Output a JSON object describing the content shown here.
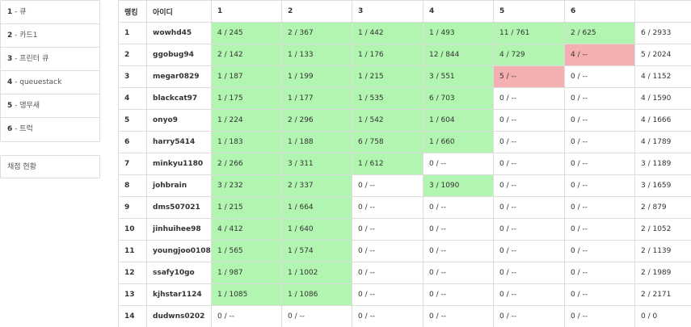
{
  "sidebar": {
    "problems": [
      {
        "num": "1",
        "title": "큐"
      },
      {
        "num": "2",
        "title": "카드1"
      },
      {
        "num": "3",
        "title": "프린터 큐"
      },
      {
        "num": "4",
        "title": "queuestack"
      },
      {
        "num": "5",
        "title": "앵무새"
      },
      {
        "num": "6",
        "title": "트럭"
      }
    ],
    "status_label": "채점 현황"
  },
  "board": {
    "headers": {
      "rank": "랭킹",
      "id": "아이디",
      "problems": [
        "1",
        "2",
        "3",
        "4",
        "5",
        "6"
      ],
      "total": ""
    },
    "colors": {
      "solved": "#b1f5b0",
      "wrong": "#f4b0b1"
    },
    "rows": [
      {
        "rank": "1",
        "id": "wowhd45",
        "cells": [
          {
            "text": "4 / 245",
            "status": "solved"
          },
          {
            "text": "2 / 367",
            "status": "solved"
          },
          {
            "text": "1 / 442",
            "status": "solved"
          },
          {
            "text": "1 / 493",
            "status": "solved"
          },
          {
            "text": "11 / 761",
            "status": "solved"
          },
          {
            "text": "2 / 625",
            "status": "solved"
          }
        ],
        "total": "6 / 2933"
      },
      {
        "rank": "2",
        "id": "ggobug94",
        "cells": [
          {
            "text": "2 / 142",
            "status": "solved"
          },
          {
            "text": "1 / 133",
            "status": "solved"
          },
          {
            "text": "1 / 176",
            "status": "solved"
          },
          {
            "text": "12 / 844",
            "status": "solved"
          },
          {
            "text": "4 / 729",
            "status": "solved"
          },
          {
            "text": "4 / --",
            "status": "wrong"
          }
        ],
        "total": "5 / 2024"
      },
      {
        "rank": "3",
        "id": "megar0829",
        "cells": [
          {
            "text": "1 / 187",
            "status": "solved"
          },
          {
            "text": "1 / 199",
            "status": "solved"
          },
          {
            "text": "1 / 215",
            "status": "solved"
          },
          {
            "text": "3 / 551",
            "status": "solved"
          },
          {
            "text": "5 / --",
            "status": "wrong"
          },
          {
            "text": "0 / --",
            "status": "none"
          }
        ],
        "total": "4 / 1152"
      },
      {
        "rank": "4",
        "id": "blackcat97",
        "cells": [
          {
            "text": "1 / 175",
            "status": "solved"
          },
          {
            "text": "1 / 177",
            "status": "solved"
          },
          {
            "text": "1 / 535",
            "status": "solved"
          },
          {
            "text": "6 / 703",
            "status": "solved"
          },
          {
            "text": "0 / --",
            "status": "none"
          },
          {
            "text": "0 / --",
            "status": "none"
          }
        ],
        "total": "4 / 1590"
      },
      {
        "rank": "5",
        "id": "onyo9",
        "cells": [
          {
            "text": "1 / 224",
            "status": "solved"
          },
          {
            "text": "2 / 296",
            "status": "solved"
          },
          {
            "text": "1 / 542",
            "status": "solved"
          },
          {
            "text": "1 / 604",
            "status": "solved"
          },
          {
            "text": "0 / --",
            "status": "none"
          },
          {
            "text": "0 / --",
            "status": "none"
          }
        ],
        "total": "4 / 1666"
      },
      {
        "rank": "6",
        "id": "harry5414",
        "cells": [
          {
            "text": "1 / 183",
            "status": "solved"
          },
          {
            "text": "1 / 188",
            "status": "solved"
          },
          {
            "text": "6 / 758",
            "status": "solved"
          },
          {
            "text": "1 / 660",
            "status": "solved"
          },
          {
            "text": "0 / --",
            "status": "none"
          },
          {
            "text": "0 / --",
            "status": "none"
          }
        ],
        "total": "4 / 1789"
      },
      {
        "rank": "7",
        "id": "minkyu1180",
        "cells": [
          {
            "text": "2 / 266",
            "status": "solved"
          },
          {
            "text": "3 / 311",
            "status": "solved"
          },
          {
            "text": "1 / 612",
            "status": "solved"
          },
          {
            "text": "0 / --",
            "status": "none"
          },
          {
            "text": "0 / --",
            "status": "none"
          },
          {
            "text": "0 / --",
            "status": "none"
          }
        ],
        "total": "3 / 1189"
      },
      {
        "rank": "8",
        "id": "johbrain",
        "cells": [
          {
            "text": "3 / 232",
            "status": "solved"
          },
          {
            "text": "2 / 337",
            "status": "solved"
          },
          {
            "text": "0 / --",
            "status": "none"
          },
          {
            "text": "3 / 1090",
            "status": "solved"
          },
          {
            "text": "0 / --",
            "status": "none"
          },
          {
            "text": "0 / --",
            "status": "none"
          }
        ],
        "total": "3 / 1659"
      },
      {
        "rank": "9",
        "id": "dms507021",
        "cells": [
          {
            "text": "1 / 215",
            "status": "solved"
          },
          {
            "text": "1 / 664",
            "status": "solved"
          },
          {
            "text": "0 / --",
            "status": "none"
          },
          {
            "text": "0 / --",
            "status": "none"
          },
          {
            "text": "0 / --",
            "status": "none"
          },
          {
            "text": "0 / --",
            "status": "none"
          }
        ],
        "total": "2 / 879"
      },
      {
        "rank": "10",
        "id": "jinhuihee98",
        "cells": [
          {
            "text": "4 / 412",
            "status": "solved"
          },
          {
            "text": "1 / 640",
            "status": "solved"
          },
          {
            "text": "0 / --",
            "status": "none"
          },
          {
            "text": "0 / --",
            "status": "none"
          },
          {
            "text": "0 / --",
            "status": "none"
          },
          {
            "text": "0 / --",
            "status": "none"
          }
        ],
        "total": "2 / 1052"
      },
      {
        "rank": "11",
        "id": "youngjoo0108",
        "cells": [
          {
            "text": "1 / 565",
            "status": "solved"
          },
          {
            "text": "1 / 574",
            "status": "solved"
          },
          {
            "text": "0 / --",
            "status": "none"
          },
          {
            "text": "0 / --",
            "status": "none"
          },
          {
            "text": "0 / --",
            "status": "none"
          },
          {
            "text": "0 / --",
            "status": "none"
          }
        ],
        "total": "2 / 1139"
      },
      {
        "rank": "12",
        "id": "ssafy10go",
        "cells": [
          {
            "text": "1 / 987",
            "status": "solved"
          },
          {
            "text": "1 / 1002",
            "status": "solved"
          },
          {
            "text": "0 / --",
            "status": "none"
          },
          {
            "text": "0 / --",
            "status": "none"
          },
          {
            "text": "0 / --",
            "status": "none"
          },
          {
            "text": "0 / --",
            "status": "none"
          }
        ],
        "total": "2 / 1989"
      },
      {
        "rank": "13",
        "id": "kjhstar1124",
        "cells": [
          {
            "text": "1 / 1085",
            "status": "solved"
          },
          {
            "text": "1 / 1086",
            "status": "solved"
          },
          {
            "text": "0 / --",
            "status": "none"
          },
          {
            "text": "0 / --",
            "status": "none"
          },
          {
            "text": "0 / --",
            "status": "none"
          },
          {
            "text": "0 / --",
            "status": "none"
          }
        ],
        "total": "2 / 2171"
      },
      {
        "rank": "14",
        "id": "dudwns0202",
        "cells": [
          {
            "text": "0 / --",
            "status": "none"
          },
          {
            "text": "0 / --",
            "status": "none"
          },
          {
            "text": "0 / --",
            "status": "none"
          },
          {
            "text": "0 / --",
            "status": "none"
          },
          {
            "text": "0 / --",
            "status": "none"
          },
          {
            "text": "0 / --",
            "status": "none"
          }
        ],
        "total": "0 / 0"
      }
    ]
  }
}
